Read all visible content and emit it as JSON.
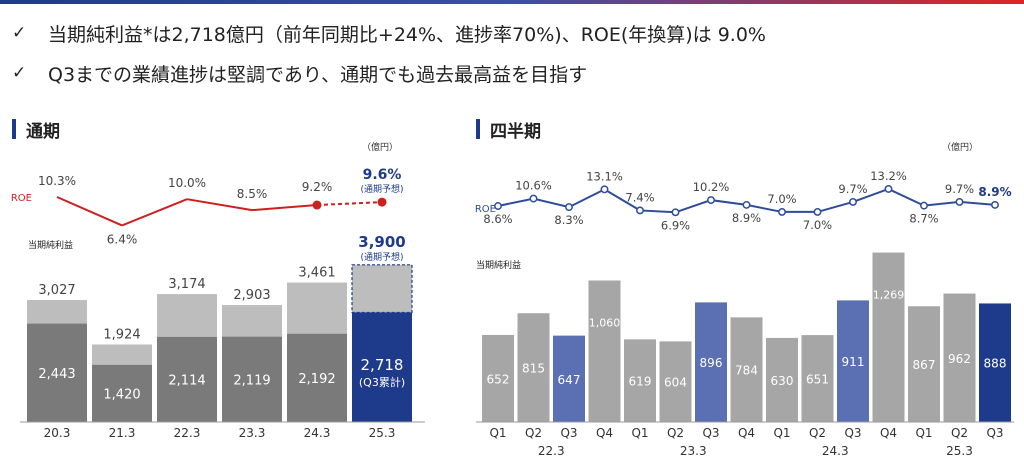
{
  "headline": {
    "line1": "当期純利益*は2,718億円（前年同期比+24%、進捗率70%)、ROE(年換算)は 9.0%",
    "line2": "Q3までの業績進捗は堅調であり、通期でも過去最高益を目指す",
    "check": "✓"
  },
  "colors": {
    "accent_blue": "#1e3a8a",
    "mid_blue": "#5b6fb3",
    "roe_red": "#cc1f1f",
    "roe_blue": "#2d4c9a",
    "bar_dark": "#7a7a7a",
    "bar_light": "#bdbdbd",
    "bar_gray": "#a6a6a6"
  },
  "chart_data": [
    {
      "type": "bar",
      "title": "通期",
      "unit": "（億円）",
      "legend_roe": "ROE",
      "legend_profit": "当期純利益",
      "categories": [
        "20.3",
        "21.3",
        "22.3",
        "23.3",
        "24.3",
        "25.3"
      ],
      "series": [
        {
          "name": "",
          "values": [
            2443,
            1420,
            2114,
            2119,
            2192,
            2718
          ],
          "labels": [
            "2,443",
            "1,420",
            "2,114",
            "2,119",
            "2,192",
            "2,718"
          ]
        },
        {
          "name": "",
          "values": [
            584,
            504,
            1060,
            784,
            1269,
            1182
          ]
        }
      ],
      "totals": [
        3027,
        1924,
        3174,
        2903,
        3461,
        3900
      ],
      "total_labels": [
        "3,027",
        "1,924",
        "3,174",
        "2,903",
        "3,461",
        "3,900"
      ],
      "forecast_sublabel": "(通期予想)",
      "q3_sublabel": "(Q3累計)",
      "roe": {
        "values": [
          10.3,
          6.4,
          10.0,
          8.5,
          9.2,
          9.6
        ],
        "labels": [
          "10.3%",
          "6.4%",
          "10.0%",
          "8.5%",
          "9.2%",
          "9.6%"
        ],
        "forecast_sublabel": "(通期予想)"
      },
      "ylim": [
        0,
        3900
      ]
    },
    {
      "type": "bar",
      "title": "四半期",
      "unit": "（億円）",
      "legend_roe": "ROE",
      "legend_profit": "当期純利益",
      "categories": [
        "Q1",
        "Q2",
        "Q3",
        "Q4",
        "Q1",
        "Q2",
        "Q3",
        "Q4",
        "Q1",
        "Q2",
        "Q3",
        "Q4",
        "Q1",
        "Q2",
        "Q3"
      ],
      "groups": [
        "22.3",
        "23.3",
        "24.3",
        "25.3"
      ],
      "values": [
        652,
        815,
        647,
        1060,
        619,
        604,
        896,
        784,
        630,
        651,
        911,
        1269,
        867,
        962,
        888
      ],
      "value_labels": [
        "652",
        "815",
        "647",
        "1,060",
        "619",
        "604",
        "896",
        "784",
        "630",
        "651",
        "911",
        "1,269",
        "867",
        "962",
        "888"
      ],
      "bar_kinds": [
        "gray",
        "gray",
        "mid",
        "gray",
        "gray",
        "gray",
        "mid",
        "gray",
        "gray",
        "gray",
        "mid",
        "gray",
        "gray",
        "gray",
        "dark"
      ],
      "roe": {
        "values": [
          8.6,
          10.6,
          8.3,
          13.1,
          7.4,
          6.9,
          10.2,
          8.9,
          7.0,
          7.0,
          9.7,
          13.2,
          8.7,
          9.7,
          8.9
        ],
        "labels": [
          "8.6%",
          "10.6%",
          "8.3%",
          "13.1%",
          "7.4%",
          "6.9%",
          "10.2%",
          "8.9%",
          "7.0%",
          "7.0%",
          "9.7%",
          "13.2%",
          "8.7%",
          "9.7%",
          "8.9%"
        ]
      },
      "ylim": [
        0,
        1300
      ]
    }
  ]
}
